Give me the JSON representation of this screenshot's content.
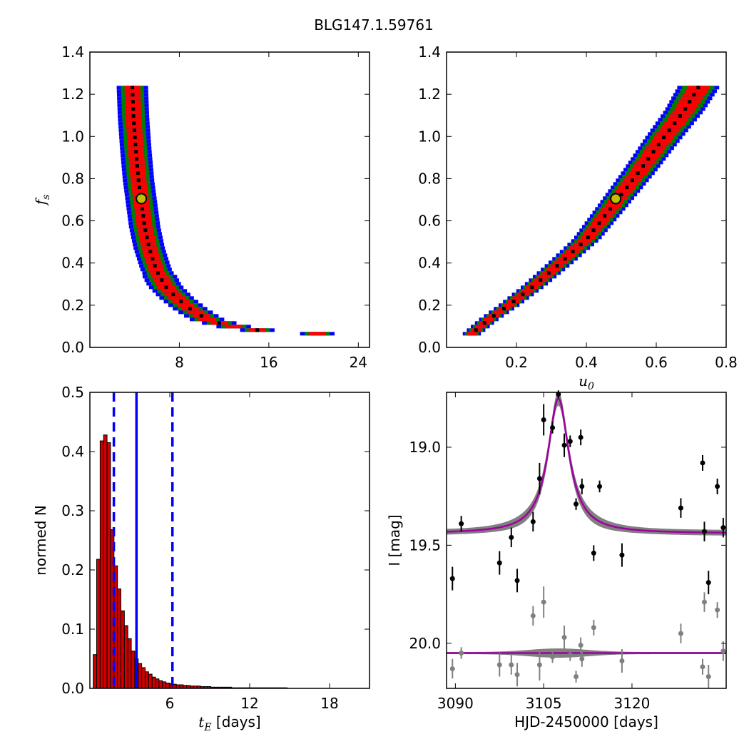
{
  "figure": {
    "title": "BLG147.1.59761"
  },
  "chart_data": [
    {
      "type": "heatmap",
      "panel": "fs-vs-tE",
      "title": "",
      "xlabel": "",
      "ylabel": "f_s",
      "xlim": [
        0,
        25
      ],
      "ylim": [
        0,
        1.4
      ],
      "xticks": [
        "8",
        "16",
        "24"
      ],
      "xtick_values": [
        8,
        16,
        24
      ],
      "yticks": [
        "0.0",
        "0.2",
        "0.4",
        "0.6",
        "0.8",
        "1.0",
        "1.2",
        "1.4"
      ],
      "ytick_values": [
        0.0,
        0.2,
        0.4,
        0.6,
        0.8,
        1.0,
        1.2,
        1.4
      ],
      "band": {
        "levels": [
          {
            "name": "3-sigma",
            "color": "#0000ff"
          },
          {
            "name": "2-sigma",
            "color": "#008000"
          },
          {
            "name": "1-sigma",
            "color": "#ff0000"
          },
          {
            "name": "best",
            "color": "#000000"
          }
        ],
        "center_curve": [
          [
            3.8,
            1.24
          ],
          [
            3.9,
            1.1
          ],
          [
            4.1,
            0.95
          ],
          [
            4.35,
            0.8
          ],
          [
            4.6,
            0.7
          ],
          [
            4.9,
            0.58
          ],
          [
            5.3,
            0.48
          ],
          [
            5.9,
            0.38
          ],
          [
            6.7,
            0.3
          ],
          [
            7.8,
            0.24
          ],
          [
            9.0,
            0.19
          ],
          [
            10.5,
            0.14
          ],
          [
            12.5,
            0.11
          ],
          [
            15.0,
            0.09
          ],
          [
            18.0,
            0.08
          ],
          [
            21.5,
            0.07
          ]
        ]
      },
      "best_fit": {
        "x": 4.6,
        "y": 0.705,
        "marker_color": "#bfbf00"
      }
    },
    {
      "type": "heatmap",
      "panel": "fs-vs-u0",
      "title": "",
      "xlabel": "u_0",
      "ylabel": "",
      "xlim": [
        0.0,
        0.8
      ],
      "ylim": [
        0,
        1.4
      ],
      "xticks": [
        "0.2",
        "0.4",
        "0.6",
        "0.8"
      ],
      "xtick_values": [
        0.2,
        0.4,
        0.6,
        0.8
      ],
      "yticks": [
        "0.0",
        "0.2",
        "0.4",
        "0.6",
        "0.8",
        "1.0",
        "1.2",
        "1.4"
      ],
      "ytick_values": [
        0.0,
        0.2,
        0.4,
        0.6,
        0.8,
        1.0,
        1.2,
        1.4
      ],
      "band": {
        "center_curve": [
          [
            0.07,
            0.07
          ],
          [
            0.12,
            0.14
          ],
          [
            0.18,
            0.21
          ],
          [
            0.25,
            0.3
          ],
          [
            0.32,
            0.4
          ],
          [
            0.4,
            0.52
          ],
          [
            0.48,
            0.69
          ],
          [
            0.55,
            0.84
          ],
          [
            0.62,
            1.0
          ],
          [
            0.68,
            1.13
          ],
          [
            0.72,
            1.24
          ]
        ]
      },
      "best_fit": {
        "x": 0.484,
        "y": 0.705,
        "marker_color": "#bfbf00"
      }
    },
    {
      "type": "bar",
      "panel": "tE-histogram",
      "title": "",
      "xlabel": "t_E [days]",
      "ylabel": "normed N",
      "xlim": [
        0,
        21
      ],
      "ylim": [
        0,
        0.5
      ],
      "xticks": [
        "6",
        "12",
        "18"
      ],
      "xtick_values": [
        6,
        12,
        18
      ],
      "yticks": [
        "0.0",
        "0.1",
        "0.2",
        "0.3",
        "0.4",
        "0.5"
      ],
      "ytick_values": [
        0.0,
        0.1,
        0.2,
        0.3,
        0.4,
        0.5
      ],
      "bin_start": 0.25,
      "bin_width": 0.26,
      "values": [
        0.057,
        0.218,
        0.418,
        0.428,
        0.415,
        0.268,
        0.207,
        0.168,
        0.131,
        0.106,
        0.084,
        0.063,
        0.05,
        0.042,
        0.035,
        0.028,
        0.024,
        0.019,
        0.016,
        0.013,
        0.011,
        0.009,
        0.008,
        0.007,
        0.006,
        0.006,
        0.005,
        0.005,
        0.004,
        0.004,
        0.004,
        0.003,
        0.003,
        0.003,
        0.002,
        0.002,
        0.002,
        0.002,
        0.002,
        0.002,
        0.001,
        0.001,
        0.001,
        0.001,
        0.001,
        0.001,
        0.001,
        0.001,
        0.001,
        0.001,
        0.001,
        0.001,
        0.001,
        0.001,
        0.001,
        0.001,
        0.0,
        0.0,
        0.0,
        0.0,
        0.0,
        0.0
      ],
      "bar_color": "#cc0000",
      "vlines": [
        {
          "x": 1.8,
          "style": "dashed",
          "color": "#0000ff"
        },
        {
          "x": 3.5,
          "style": "solid",
          "color": "#0000ff"
        },
        {
          "x": 6.2,
          "style": "dashed",
          "color": "#0000ff"
        }
      ]
    },
    {
      "type": "scatter",
      "panel": "lightcurve",
      "title": "",
      "xlabel": "HJD-2450000 [days]",
      "ylabel": "I [mag]",
      "xlim": [
        3088.5,
        3136
      ],
      "ylim": [
        20.23,
        18.72
      ],
      "xticks": [
        "3090",
        "3105",
        "3120"
      ],
      "xtick_values": [
        3090,
        3105,
        3120
      ],
      "yticks": [
        "19.0",
        "19.5",
        "20.0"
      ],
      "ytick_values": [
        19.0,
        19.5,
        20.0
      ],
      "model": {
        "t0": 3107.5,
        "base": 19.44,
        "peak": 18.75,
        "width": 3.0,
        "color": "#a000a0",
        "band_color": "#808080"
      },
      "residual_baseline": 20.05,
      "points": [
        {
          "x": 3089.5,
          "y": 19.67,
          "err": 0.06
        },
        {
          "x": 3091.0,
          "y": 19.39,
          "err": 0.04
        },
        {
          "x": 3097.5,
          "y": 19.59,
          "err": 0.06
        },
        {
          "x": 3099.5,
          "y": 19.46,
          "err": 0.05
        },
        {
          "x": 3100.5,
          "y": 19.68,
          "err": 0.06
        },
        {
          "x": 3103.2,
          "y": 19.38,
          "err": 0.05
        },
        {
          "x": 3104.3,
          "y": 19.16,
          "err": 0.08
        },
        {
          "x": 3105.0,
          "y": 18.86,
          "err": 0.08
        },
        {
          "x": 3106.5,
          "y": 18.9,
          "err": 0.03
        },
        {
          "x": 3108.5,
          "y": 18.99,
          "err": 0.06
        },
        {
          "x": 3109.5,
          "y": 18.97,
          "err": 0.03
        },
        {
          "x": 3110.5,
          "y": 19.29,
          "err": 0.03
        },
        {
          "x": 3111.5,
          "y": 19.2,
          "err": 0.04
        },
        {
          "x": 3111.3,
          "y": 18.95,
          "err": 0.04
        },
        {
          "x": 3113.5,
          "y": 19.54,
          "err": 0.04
        },
        {
          "x": 3114.5,
          "y": 19.2,
          "err": 0.03
        },
        {
          "x": 3118.3,
          "y": 19.55,
          "err": 0.06
        },
        {
          "x": 3128.3,
          "y": 19.31,
          "err": 0.05
        },
        {
          "x": 3132.0,
          "y": 19.08,
          "err": 0.04
        },
        {
          "x": 3132.3,
          "y": 19.43,
          "err": 0.05
        },
        {
          "x": 3133.0,
          "y": 19.69,
          "err": 0.06
        },
        {
          "x": 3134.5,
          "y": 19.2,
          "err": 0.04
        },
        {
          "x": 3135.5,
          "y": 19.41,
          "err": 0.05
        },
        {
          "x": 3107.5,
          "y": 18.73,
          "err": 0.02
        }
      ],
      "residual_points": [
        {
          "x": 3089.5,
          "y": 20.13,
          "err": 0.05
        },
        {
          "x": 3091.0,
          "y": 20.05,
          "err": 0.03
        },
        {
          "x": 3097.5,
          "y": 20.11,
          "err": 0.06
        },
        {
          "x": 3099.5,
          "y": 20.11,
          "err": 0.05
        },
        {
          "x": 3100.5,
          "y": 20.16,
          "err": 0.06
        },
        {
          "x": 3103.2,
          "y": 19.86,
          "err": 0.05
        },
        {
          "x": 3104.3,
          "y": 20.11,
          "err": 0.08
        },
        {
          "x": 3105.0,
          "y": 19.79,
          "err": 0.08
        },
        {
          "x": 3106.5,
          "y": 20.07,
          "err": 0.03
        },
        {
          "x": 3108.5,
          "y": 19.97,
          "err": 0.06
        },
        {
          "x": 3109.5,
          "y": 20.06,
          "err": 0.03
        },
        {
          "x": 3110.5,
          "y": 20.17,
          "err": 0.03
        },
        {
          "x": 3111.5,
          "y": 20.08,
          "err": 0.04
        },
        {
          "x": 3111.3,
          "y": 20.01,
          "err": 0.04
        },
        {
          "x": 3113.5,
          "y": 19.92,
          "err": 0.04
        },
        {
          "x": 3118.3,
          "y": 20.09,
          "err": 0.06
        },
        {
          "x": 3128.3,
          "y": 19.95,
          "err": 0.05
        },
        {
          "x": 3132.0,
          "y": 20.12,
          "err": 0.04
        },
        {
          "x": 3132.3,
          "y": 19.79,
          "err": 0.05
        },
        {
          "x": 3133.0,
          "y": 20.17,
          "err": 0.06
        },
        {
          "x": 3134.5,
          "y": 19.83,
          "err": 0.04
        },
        {
          "x": 3135.5,
          "y": 20.04,
          "err": 0.05
        }
      ]
    }
  ]
}
